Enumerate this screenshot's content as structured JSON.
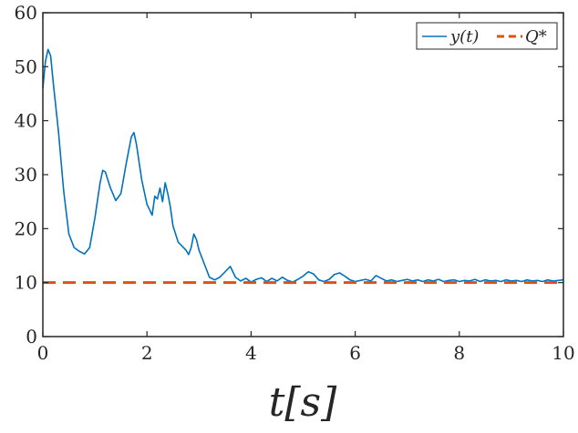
{
  "chart_data": {
    "type": "line",
    "title": "",
    "xlabel": "t[s]",
    "ylabel": "",
    "xlim": [
      0,
      10
    ],
    "ylim": [
      0,
      60
    ],
    "xticks": [
      0,
      2,
      4,
      6,
      8,
      10
    ],
    "yticks": [
      0,
      10,
      20,
      30,
      40,
      50,
      60
    ],
    "grid": false,
    "legend_position": "top-right",
    "series": [
      {
        "name": "y(t)",
        "color": "#0072BD",
        "style": "solid",
        "x": [
          0,
          0.05,
          0.1,
          0.15,
          0.2,
          0.3,
          0.4,
          0.5,
          0.6,
          0.7,
          0.8,
          0.9,
          1.0,
          1.1,
          1.15,
          1.2,
          1.3,
          1.4,
          1.5,
          1.6,
          1.7,
          1.75,
          1.8,
          1.9,
          2.0,
          2.05,
          2.1,
          2.15,
          2.2,
          2.25,
          2.3,
          2.35,
          2.4,
          2.45,
          2.5,
          2.6,
          2.7,
          2.75,
          2.8,
          2.85,
          2.9,
          2.95,
          3.0,
          3.1,
          3.2,
          3.3,
          3.4,
          3.5,
          3.6,
          3.7,
          3.8,
          3.9,
          4.0,
          4.1,
          4.2,
          4.3,
          4.4,
          4.5,
          4.6,
          4.7,
          4.8,
          4.9,
          5.0,
          5.1,
          5.2,
          5.3,
          5.4,
          5.5,
          5.6,
          5.7,
          5.8,
          5.9,
          6.0,
          6.1,
          6.2,
          6.3,
          6.4,
          6.5,
          6.6,
          6.7,
          6.8,
          6.9,
          7.0,
          7.1,
          7.2,
          7.3,
          7.4,
          7.5,
          7.6,
          7.7,
          7.8,
          7.9,
          8.0,
          8.1,
          8.2,
          8.3,
          8.4,
          8.5,
          8.6,
          8.7,
          8.8,
          8.9,
          9.0,
          9.1,
          9.2,
          9.3,
          9.4,
          9.5,
          9.6,
          9.7,
          9.8,
          9.9,
          10.0
        ],
        "y": [
          46,
          51,
          53.2,
          52,
          47,
          38,
          27,
          19,
          16.5,
          15.8,
          15.3,
          16.5,
          22,
          28.5,
          30.8,
          30.5,
          27.5,
          25.2,
          26.5,
          32,
          37,
          37.8,
          35.5,
          29,
          24.5,
          23.5,
          22.5,
          26,
          25.5,
          27.5,
          25,
          28.5,
          26.5,
          24,
          20.5,
          17.5,
          16.5,
          16,
          15.2,
          16.5,
          19,
          18,
          16,
          13.5,
          11,
          10.5,
          11,
          12,
          13,
          11,
          10.3,
          10.8,
          10.1,
          10.6,
          10.9,
          10.2,
          10.8,
          10.3,
          11,
          10.4,
          10.1,
          10.6,
          11.2,
          12,
          11.6,
          10.5,
          10.2,
          10.6,
          11.5,
          11.8,
          11.2,
          10.5,
          10.2,
          10.4,
          10.6,
          10.3,
          11.3,
          10.8,
          10.3,
          10.5,
          10.2,
          10.4,
          10.6,
          10.3,
          10.5,
          10.2,
          10.5,
          10.3,
          10.6,
          10.2,
          10.4,
          10.5,
          10.2,
          10.4,
          10.3,
          10.6,
          10.2,
          10.5,
          10.3,
          10.4,
          10.2,
          10.5,
          10.3,
          10.4,
          10.2,
          10.5,
          10.3,
          10.4,
          10.2,
          10.5,
          10.3,
          10.4,
          10.5
        ]
      },
      {
        "name": "Q*",
        "color": "#D95319",
        "style": "dashed",
        "x": [
          0,
          10
        ],
        "y": [
          10,
          10
        ]
      }
    ]
  }
}
